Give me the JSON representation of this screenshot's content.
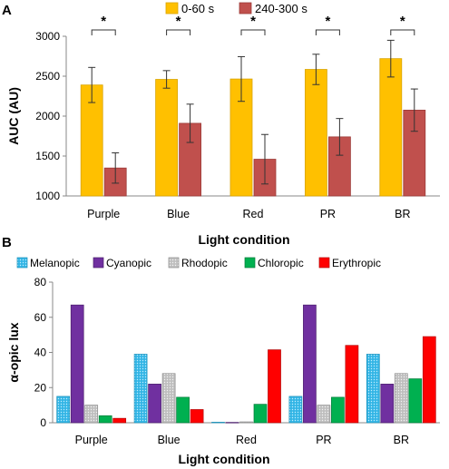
{
  "figure": {
    "panel_a_letter": "A",
    "panel_b_letter": "B"
  },
  "chart_data": [
    {
      "type": "bar",
      "panel": "A",
      "categories": [
        "Purple",
        "Blue",
        "Red",
        "PR",
        "BR"
      ],
      "series": [
        {
          "name": "0-60 s",
          "color": "#ffc000",
          "values": [
            2390,
            2460,
            2465,
            2585,
            2720
          ],
          "errors": [
            220,
            110,
            280,
            190,
            230
          ]
        },
        {
          "name": "240-300 s",
          "color": "#c0504d",
          "values": [
            1350,
            1910,
            1460,
            1740,
            2075
          ],
          "errors": [
            190,
            240,
            310,
            230,
            265
          ]
        }
      ],
      "significance": [
        "*",
        "*",
        "*",
        "*",
        "*"
      ],
      "xlabel": "Light condition",
      "ylabel": "AUC (AU)",
      "ylim": [
        1000,
        3000
      ],
      "yticks": [
        1000,
        1500,
        2000,
        2500,
        3000
      ],
      "legend_position": "top",
      "grid": false
    },
    {
      "type": "bar",
      "panel": "B",
      "categories": [
        "Purple",
        "Blue",
        "Red",
        "PR",
        "BR"
      ],
      "series": [
        {
          "name": "Melanopic",
          "color": "#33b5e5",
          "pattern": "dots",
          "values": [
            15,
            39,
            0.3,
            15,
            39
          ]
        },
        {
          "name": "Cyanopic",
          "color": "#7030a0",
          "values": [
            67,
            22,
            0.2,
            67,
            22
          ]
        },
        {
          "name": "Rhodopic",
          "color": "#bfbfbf",
          "pattern": "dots",
          "values": [
            10,
            28,
            0.5,
            10,
            28
          ]
        },
        {
          "name": "Chloropic",
          "color": "#00b050",
          "values": [
            4,
            14.5,
            10.5,
            14.5,
            25
          ]
        },
        {
          "name": "Erythropic",
          "color": "#ff0000",
          "values": [
            2.5,
            7.5,
            41.5,
            44,
            49
          ]
        }
      ],
      "xlabel": "Light condition",
      "ylabel": "α-opic lux",
      "ylim": [
        0,
        80
      ],
      "yticks": [
        0,
        20,
        40,
        60,
        80
      ],
      "legend_position": "top",
      "grid": false
    }
  ]
}
